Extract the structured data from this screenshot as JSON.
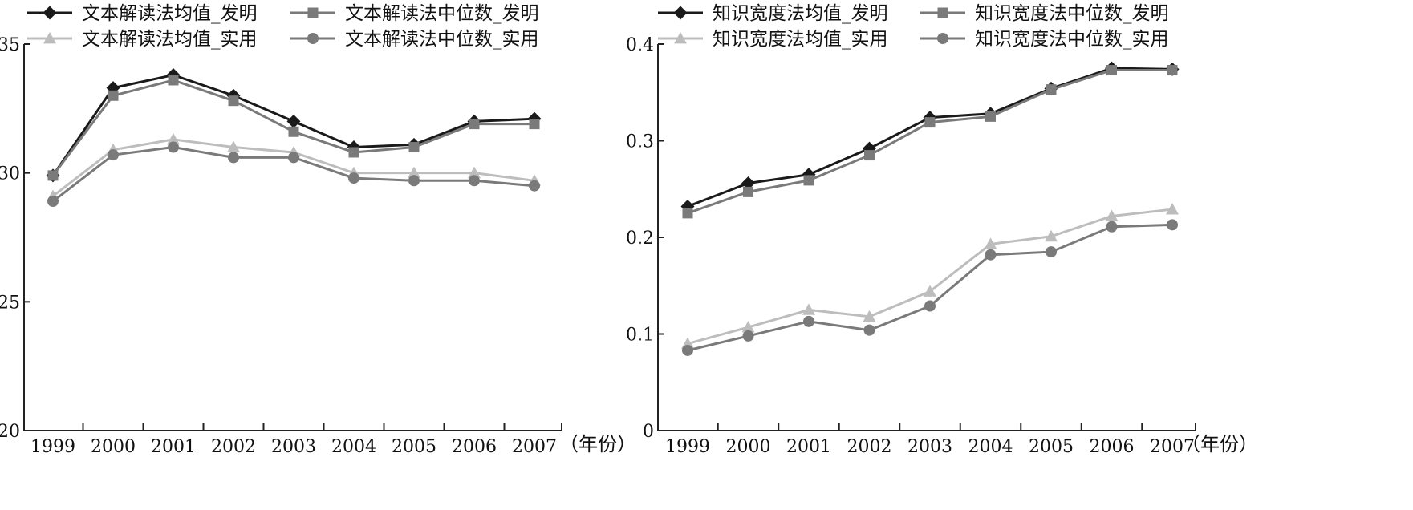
{
  "chart_data": [
    {
      "type": "line",
      "title": "",
      "xlabel": "（年份）",
      "ylabel": "",
      "categories": [
        "1999",
        "2000",
        "2001",
        "2002",
        "2003",
        "2004",
        "2005",
        "2006",
        "2007"
      ],
      "ylim": [
        20,
        35
      ],
      "yticks": [
        "20",
        "25",
        "30",
        "35"
      ],
      "grid": false,
      "legend_position": "top",
      "series": [
        {
          "name": "文本解读法均值_发明",
          "marker": "diamond",
          "color": "#1a1a1a",
          "values": [
            29.9,
            33.3,
            33.8,
            33.0,
            32.0,
            31.0,
            31.1,
            32.0,
            32.1
          ]
        },
        {
          "name": "文本解读法中位数_发明",
          "marker": "square",
          "color": "#7a7a7a",
          "values": [
            29.9,
            33.0,
            33.6,
            32.8,
            31.6,
            30.8,
            31.0,
            31.9,
            31.9
          ]
        },
        {
          "name": "文本解读法均值_实用",
          "marker": "triangle",
          "color": "#bdbdbd",
          "values": [
            29.1,
            30.9,
            31.3,
            31.0,
            30.8,
            30.0,
            30.0,
            30.0,
            29.7
          ]
        },
        {
          "name": "文本解读法中位数_实用",
          "marker": "circle",
          "color": "#7a7a7a",
          "values": [
            28.9,
            30.7,
            31.0,
            30.6,
            30.6,
            29.8,
            29.7,
            29.7,
            29.5
          ]
        }
      ]
    },
    {
      "type": "line",
      "title": "",
      "xlabel": "（年份）",
      "ylabel": "",
      "categories": [
        "1999",
        "2000",
        "2001",
        "2002",
        "2003",
        "2004",
        "2005",
        "2006",
        "2007"
      ],
      "ylim": [
        0,
        0.4
      ],
      "yticks": [
        "0",
        "0.1",
        "0.2",
        "0.3",
        "0.4"
      ],
      "grid": false,
      "legend_position": "top",
      "series": [
        {
          "name": "知识宽度法均值_发明",
          "marker": "diamond",
          "color": "#1a1a1a",
          "values": [
            0.232,
            0.256,
            0.265,
            0.292,
            0.324,
            0.328,
            0.354,
            0.375,
            0.374
          ]
        },
        {
          "name": "知识宽度法中位数_发明",
          "marker": "square",
          "color": "#7a7a7a",
          "values": [
            0.225,
            0.247,
            0.259,
            0.285,
            0.319,
            0.325,
            0.353,
            0.373,
            0.373
          ]
        },
        {
          "name": "知识宽度法均值_实用",
          "marker": "triangle",
          "color": "#bdbdbd",
          "values": [
            0.09,
            0.107,
            0.125,
            0.118,
            0.144,
            0.193,
            0.201,
            0.222,
            0.229
          ]
        },
        {
          "name": "知识宽度法中位数_实用",
          "marker": "circle",
          "color": "#7a7a7a",
          "values": [
            0.083,
            0.098,
            0.113,
            0.104,
            0.129,
            0.182,
            0.185,
            0.211,
            0.213
          ]
        }
      ]
    }
  ]
}
